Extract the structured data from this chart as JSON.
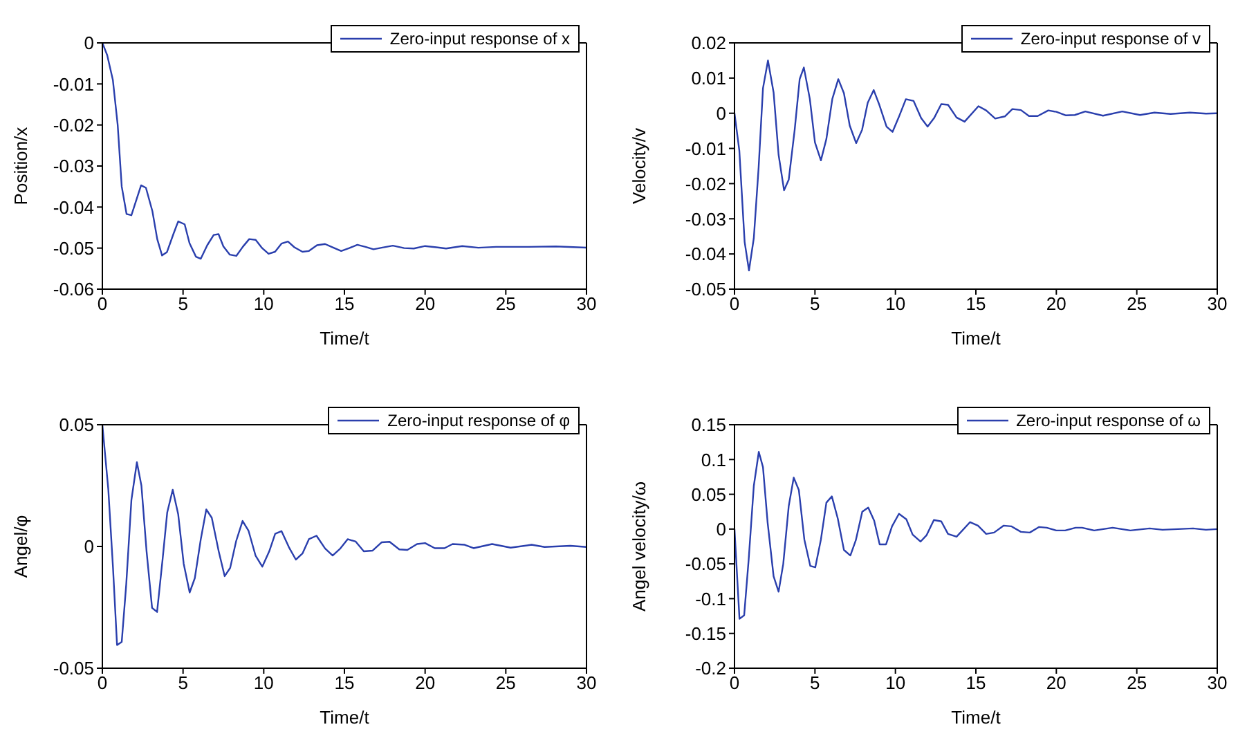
{
  "chart_data": [
    {
      "type": "line",
      "xlabel": "Time/t",
      "ylabel": "Position/x",
      "xlim": [
        0,
        30
      ],
      "xticks": [
        0,
        5,
        10,
        15,
        20,
        25,
        30
      ],
      "ylim": [
        -0.06,
        0
      ],
      "yticks": [
        -0.06,
        -0.05,
        -0.04,
        -0.03,
        -0.02,
        -0.01,
        0
      ],
      "legend": "top right",
      "x": [
        0,
        0.3,
        0.65,
        0.95,
        1.2,
        1.5,
        1.8,
        2.4,
        2.7,
        3.1,
        3.4,
        3.7,
        4.0,
        4.4,
        4.7,
        5.1,
        5.4,
        5.8,
        6.1,
        6.5,
        6.9,
        7.2,
        7.5,
        7.9,
        8.3,
        8.7,
        9.1,
        9.5,
        9.9,
        10.3,
        10.7,
        11.1,
        11.5,
        11.9,
        12.4,
        12.8,
        13.3,
        13.8,
        14.2,
        14.8,
        15.3,
        15.8,
        16.3,
        16.8,
        17.3,
        18.0,
        18.7,
        19.3,
        20.0,
        20.7,
        21.3,
        22.3,
        23.3,
        24.4,
        26.4,
        28.1,
        30
      ],
      "series": [
        {
          "name": "Zero-input response of x",
          "color": "#2a3fad",
          "values": [
            0,
            -0.003,
            -0.009,
            -0.02,
            -0.035,
            -0.0417,
            -0.042,
            -0.0347,
            -0.0353,
            -0.041,
            -0.0478,
            -0.0518,
            -0.051,
            -0.0466,
            -0.0435,
            -0.0442,
            -0.0488,
            -0.0521,
            -0.0526,
            -0.0493,
            -0.0468,
            -0.0466,
            -0.0496,
            -0.0516,
            -0.0519,
            -0.0497,
            -0.0478,
            -0.048,
            -0.05,
            -0.0514,
            -0.0509,
            -0.0489,
            -0.0484,
            -0.0498,
            -0.0509,
            -0.0507,
            -0.0493,
            -0.049,
            -0.0497,
            -0.0507,
            -0.05,
            -0.0492,
            -0.0497,
            -0.0503,
            -0.0499,
            -0.0494,
            -0.05,
            -0.0501,
            -0.0495,
            -0.0498,
            -0.0501,
            -0.0495,
            -0.0499,
            -0.0497,
            -0.0497,
            -0.0496,
            -0.0499
          ]
        }
      ]
    },
    {
      "type": "line",
      "xlabel": "Time/t",
      "ylabel": "Velocity/v",
      "xlim": [
        0,
        30
      ],
      "xticks": [
        0,
        5,
        10,
        15,
        20,
        25,
        30
      ],
      "ylim": [
        -0.05,
        0.02
      ],
      "yticks": [
        -0.05,
        -0.04,
        -0.03,
        -0.02,
        -0.01,
        0,
        0.01,
        0.02
      ],
      "legend": "top right",
      "x": [
        0,
        0.3,
        0.63,
        0.9,
        1.2,
        1.5,
        1.77,
        2.08,
        2.43,
        2.74,
        3.08,
        3.37,
        3.74,
        4.05,
        4.31,
        4.68,
        5.0,
        5.37,
        5.71,
        6.08,
        6.45,
        6.8,
        7.16,
        7.56,
        7.93,
        8.28,
        8.65,
        9.0,
        9.45,
        9.82,
        10.2,
        10.65,
        11.13,
        11.6,
        12.0,
        12.4,
        12.85,
        13.27,
        13.8,
        14.3,
        15.16,
        15.64,
        16.2,
        16.8,
        17.27,
        17.8,
        18.3,
        18.84,
        19.5,
        20.0,
        20.6,
        21.15,
        21.8,
        22.9,
        24.1,
        25.2,
        26.1,
        27.1,
        28.3,
        29.3,
        30
      ],
      "series": [
        {
          "name": "Zero-input response of v",
          "color": "#2a3fad",
          "values": [
            0,
            -0.0106,
            -0.0366,
            -0.0447,
            -0.0355,
            -0.0154,
            0.0071,
            0.015,
            0.0059,
            -0.0118,
            -0.0219,
            -0.0189,
            -0.0047,
            0.0097,
            0.013,
            0.0041,
            -0.0083,
            -0.0134,
            -0.0073,
            0.0041,
            0.0097,
            0.0057,
            -0.0035,
            -0.0085,
            -0.0047,
            0.003,
            0.0066,
            0.0024,
            -0.0038,
            -0.0053,
            -0.0012,
            0.004,
            0.0035,
            -0.0014,
            -0.0038,
            -0.0014,
            0.0026,
            0.0024,
            -0.0012,
            -0.0024,
            0.002,
            0.0008,
            -0.0015,
            -0.0009,
            0.0012,
            0.0009,
            -0.0008,
            -0.0008,
            0.0008,
            0.0004,
            -0.0006,
            -0.0005,
            0.0005,
            -0.0007,
            0.0005,
            -0.0005,
            0.0002,
            -0.0002,
            0.0002,
            -0.0001,
            0
          ]
        }
      ]
    },
    {
      "type": "line",
      "xlabel": "Time/t",
      "ylabel": "Angel/φ",
      "xlim": [
        0,
        30
      ],
      "xticks": [
        0,
        5,
        10,
        15,
        20,
        25,
        30
      ],
      "ylim": [
        -0.05,
        0.05
      ],
      "yticks": [
        -0.05,
        0,
        0.05
      ],
      "legend": "top right",
      "x": [
        0,
        0.37,
        0.66,
        0.91,
        1.2,
        1.48,
        1.8,
        2.14,
        2.42,
        2.74,
        3.08,
        3.39,
        3.73,
        4.02,
        4.36,
        4.7,
        5.04,
        5.41,
        5.73,
        6.1,
        6.44,
        6.78,
        7.21,
        7.58,
        7.92,
        8.29,
        8.69,
        9.06,
        9.49,
        9.91,
        10.34,
        10.71,
        11.1,
        11.56,
        11.99,
        12.4,
        12.8,
        13.27,
        13.8,
        14.27,
        14.75,
        15.2,
        15.7,
        16.2,
        16.75,
        17.3,
        17.8,
        18.4,
        18.9,
        19.5,
        20.0,
        20.6,
        21.2,
        21.7,
        22.45,
        23.0,
        24.15,
        25.3,
        26.6,
        27.4,
        29.0,
        30
      ],
      "series": [
        {
          "name": "Zero-input response of φ",
          "color": "#2a3fad",
          "values": [
            0.05,
            0.0233,
            -0.0088,
            -0.0405,
            -0.0392,
            -0.0155,
            0.0191,
            0.0346,
            0.025,
            -0.002,
            -0.0252,
            -0.0269,
            -0.0054,
            0.014,
            0.0233,
            0.0132,
            -0.0071,
            -0.0189,
            -0.013,
            0.003,
            0.0152,
            0.0118,
            -0.002,
            -0.0122,
            -0.0088,
            0.0022,
            0.0105,
            0.0064,
            -0.0037,
            -0.0083,
            -0.002,
            0.0052,
            0.0063,
            -0.0003,
            -0.0054,
            -0.0029,
            0.003,
            0.0044,
            -0.0008,
            -0.0037,
            -0.0008,
            0.003,
            0.002,
            -0.002,
            -0.0017,
            0.0017,
            0.0019,
            -0.0012,
            -0.0014,
            0.001,
            0.0014,
            -0.0007,
            -0.0007,
            0.001,
            0.0007,
            -0.0007,
            0.001,
            -0.0005,
            0.0007,
            -0.0002,
            0.0003,
            -0.0002
          ]
        }
      ]
    },
    {
      "type": "line",
      "xlabel": "Time/t",
      "ylabel": "Angel velocity/ω",
      "xlim": [
        0,
        30
      ],
      "xticks": [
        0,
        5,
        10,
        15,
        20,
        25,
        30
      ],
      "ylim": [
        -0.2,
        0.15
      ],
      "yticks": [
        -0.2,
        -0.15,
        -0.1,
        -0.05,
        0,
        0.05,
        0.1,
        0.15
      ],
      "legend": "top right",
      "x": [
        0,
        0.31,
        0.6,
        0.88,
        1.2,
        1.51,
        1.77,
        2.06,
        2.43,
        2.74,
        3.03,
        3.37,
        3.68,
        4.0,
        4.34,
        4.71,
        5.02,
        5.37,
        5.71,
        6.05,
        6.42,
        6.8,
        7.2,
        7.54,
        7.94,
        8.31,
        8.68,
        9.02,
        9.42,
        9.79,
        10.22,
        10.68,
        11.07,
        11.56,
        11.93,
        12.39,
        12.85,
        13.27,
        13.8,
        14.64,
        15.13,
        15.64,
        16.13,
        16.73,
        17.2,
        17.8,
        18.35,
        18.93,
        19.4,
        20.0,
        20.55,
        21.2,
        21.6,
        22.35,
        23.5,
        24.6,
        25.8,
        26.6,
        28.5,
        29.3,
        30
      ],
      "series": [
        {
          "name": "Zero-input response of ω",
          "color": "#2a3fad",
          "values": [
            0,
            -0.129,
            -0.124,
            -0.044,
            0.062,
            0.111,
            0.089,
            0.009,
            -0.068,
            -0.09,
            -0.05,
            0.033,
            0.074,
            0.056,
            -0.015,
            -0.053,
            -0.055,
            -0.015,
            0.038,
            0.047,
            0.015,
            -0.03,
            -0.038,
            -0.016,
            0.025,
            0.031,
            0.012,
            -0.022,
            -0.022,
            0.004,
            0.022,
            0.014,
            -0.008,
            -0.018,
            -0.009,
            0.013,
            0.011,
            -0.007,
            -0.011,
            0.01,
            0.005,
            -0.007,
            -0.005,
            0.005,
            0.004,
            -0.004,
            -0.005,
            0.003,
            0.002,
            -0.002,
            -0.002,
            0.002,
            0.002,
            -0.002,
            0.002,
            -0.002,
            0.001,
            -0.001,
            0.001,
            -0.001,
            0
          ]
        }
      ]
    }
  ]
}
